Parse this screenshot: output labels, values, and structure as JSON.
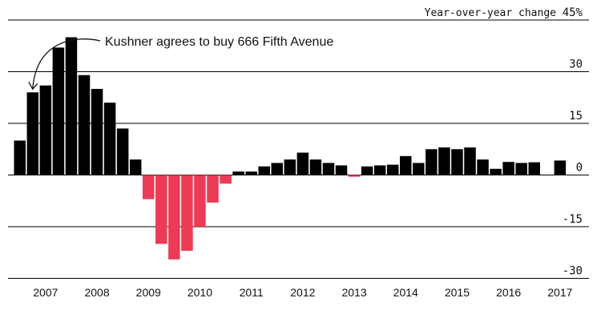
{
  "chart_data": {
    "type": "bar",
    "ylabel": "Year-over-year change",
    "ylim": [
      -30,
      45
    ],
    "y_ticks": [
      "45%",
      "30",
      "15",
      "0",
      "-15",
      "-30"
    ],
    "x_tick_labels": [
      "2007",
      "2008",
      "2009",
      "2010",
      "2011",
      "2012",
      "2013",
      "2014",
      "2015",
      "2016",
      "2017"
    ],
    "grid": true,
    "colors": {
      "positive": "#000000",
      "negative": "#ee3a54"
    },
    "annotation": {
      "text": "Kushner agrees to buy 666 Fifth Avenue",
      "target": "2007 Q1"
    },
    "categories": [
      "2006 Q4",
      "2007 Q1",
      "2007 Q2",
      "2007 Q3",
      "2007 Q4",
      "2008 Q1",
      "2008 Q2",
      "2008 Q3",
      "2008 Q4",
      "2009 Q1",
      "2009 Q2",
      "2009 Q3",
      "2009 Q4",
      "2010 Q1",
      "2010 Q2",
      "2010 Q3",
      "2010 Q4",
      "2011 Q1",
      "2011 Q2",
      "2011 Q3",
      "2011 Q4",
      "2012 Q1",
      "2012 Q2",
      "2012 Q3",
      "2012 Q4",
      "2013 Q1",
      "2013 Q2",
      "2013 Q3",
      "2013 Q4",
      "2014 Q1",
      "2014 Q2",
      "2014 Q3",
      "2014 Q4",
      "2015 Q1",
      "2015 Q2",
      "2015 Q3",
      "2015 Q4",
      "2016 Q1",
      "2016 Q2",
      "2016 Q3",
      "2016 Q4",
      "2017 Q1",
      "2017 Q2"
    ],
    "values": [
      10,
      24,
      26,
      37,
      40,
      29,
      25,
      21,
      13.5,
      4.5,
      -7,
      -20,
      -24.5,
      -22,
      -15,
      -8,
      -2.5,
      1,
      1,
      2.5,
      3.5,
      4.5,
      6.5,
      4.5,
      3.5,
      2.8,
      -0.5,
      2.5,
      2.8,
      3,
      5.5,
      3.5,
      7.5,
      8,
      7.5,
      8,
      4.5,
      1.8,
      3.8,
      3.5,
      3.7,
      null,
      4.2
    ]
  }
}
